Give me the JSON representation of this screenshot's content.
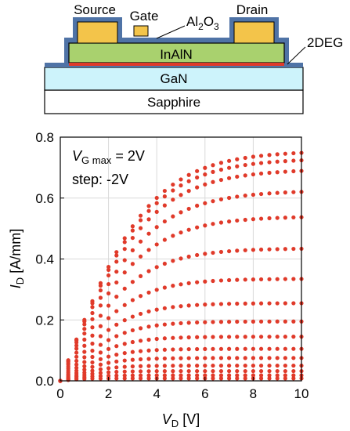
{
  "device": {
    "layers": {
      "substrate": "Sapphire",
      "buffer": "GaN",
      "barrier": "InAlN",
      "dielectric_base": "Al",
      "dielectric_sub1": "2",
      "dielectric_mid": "O",
      "dielectric_sub2": "3",
      "channel": "2DEG"
    },
    "contacts": {
      "source": "Source",
      "gate": "Gate",
      "drain": "Drain"
    },
    "colors": {
      "sapphire": "#ffffff",
      "gan": "#cdf3fb",
      "inaln": "#a9d16e",
      "al2o3": "#4f73a6",
      "contact": "#f3c44a",
      "channel": "#e03a2a",
      "outline": "#000000"
    }
  },
  "chart_data": {
    "type": "scatter",
    "x_axis": {
      "symbol": "V",
      "subscript": "D",
      "unit": " [V]",
      "min": 0,
      "max": 10,
      "ticks": [
        0,
        2,
        4,
        6,
        8,
        10
      ]
    },
    "y_axis": {
      "symbol": "I",
      "subscript": "D",
      "unit": " [A/mm]",
      "min": 0,
      "max": 0.8,
      "ticks": [
        0.0,
        0.2,
        0.4,
        0.6,
        0.8
      ]
    },
    "annotation": {
      "symbol": "V",
      "subscript": "G max",
      "value": " = 2V",
      "step": "step: -2V"
    },
    "marker_color": "#e03a2a",
    "x": [
      0,
      0.33,
      0.67,
      1.0,
      1.33,
      1.67,
      2.0,
      2.33,
      2.67,
      3.0,
      3.33,
      3.67,
      4.0,
      4.33,
      4.67,
      5.0,
      5.33,
      5.67,
      6.0,
      6.33,
      6.67,
      7.0,
      7.33,
      7.67,
      8.0,
      8.33,
      8.67,
      9.0,
      9.33,
      9.67,
      10.0
    ],
    "series": [
      {
        "isat": 0.755,
        "gm": 0.205
      },
      {
        "isat": 0.73,
        "gm": 0.2
      },
      {
        "isat": 0.695,
        "gm": 0.19
      },
      {
        "isat": 0.625,
        "gm": 0.175
      },
      {
        "isat": 0.54,
        "gm": 0.16
      },
      {
        "isat": 0.435,
        "gm": 0.14
      },
      {
        "isat": 0.335,
        "gm": 0.12
      },
      {
        "isat": 0.255,
        "gm": 0.1
      },
      {
        "isat": 0.195,
        "gm": 0.082
      },
      {
        "isat": 0.145,
        "gm": 0.066
      },
      {
        "isat": 0.105,
        "gm": 0.052
      },
      {
        "isat": 0.075,
        "gm": 0.04
      },
      {
        "isat": 0.05,
        "gm": 0.03
      },
      {
        "isat": 0.032,
        "gm": 0.022
      },
      {
        "isat": 0.018,
        "gm": 0.015
      },
      {
        "isat": 0.008,
        "gm": 0.009
      }
    ]
  }
}
